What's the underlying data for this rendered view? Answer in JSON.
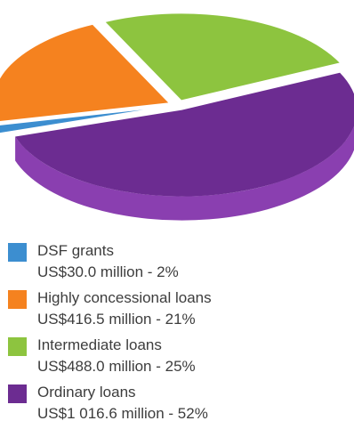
{
  "chart_data": {
    "type": "pie",
    "style": "3d-exploded",
    "slices": [
      {
        "label": "DSF grants",
        "detail": "US$30.0 million - 2%",
        "value": 30.0,
        "percent": 2,
        "color": "#3c8ed0",
        "side_color": "#2a6aa3"
      },
      {
        "label": "Highly concessional loans",
        "detail": "US$416.5 million - 21%",
        "value": 416.5,
        "percent": 21,
        "color": "#f5821f",
        "side_color": "#d9661a"
      },
      {
        "label": "Intermediate loans",
        "detail": "US$488.0 million - 25%",
        "value": 488.0,
        "percent": 25,
        "color": "#8dc43f",
        "side_color": "#6fa02e"
      },
      {
        "label": "Ordinary loans",
        "detail": "US$1 016.6 million - 52%",
        "value": 1016.6,
        "percent": 52,
        "color": "#6c2c91",
        "side_color": "#8a3fb0"
      }
    ],
    "legend_position": "bottom"
  }
}
